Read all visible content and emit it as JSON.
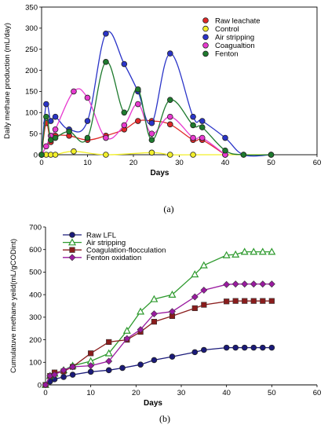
{
  "chart_data": [
    {
      "type": "line",
      "panel_label": "(a)",
      "xlabel": "Days",
      "ylabel": "Daily methane production (mL/day)",
      "xlim": [
        0,
        60
      ],
      "ylim": [
        0,
        350
      ],
      "xticks": [
        0,
        10,
        20,
        30,
        40,
        50,
        60
      ],
      "yticks": [
        0,
        50,
        100,
        150,
        200,
        250,
        300,
        350
      ],
      "grid": false,
      "legend_position": "top-right",
      "series": [
        {
          "name": "Raw leachate",
          "color": "#e02828",
          "x": [
            0,
            1,
            2,
            3,
            6,
            10,
            14,
            18,
            21,
            24,
            28,
            33,
            35,
            40
          ],
          "y": [
            0,
            75,
            30,
            45,
            45,
            35,
            45,
            60,
            80,
            80,
            72,
            35,
            35,
            0
          ]
        },
        {
          "name": "Control",
          "color": "#f2ef2a",
          "x": [
            0,
            1,
            2,
            3,
            7,
            14,
            24,
            28,
            33,
            40,
            50
          ],
          "y": [
            0,
            0,
            0,
            0,
            8,
            0,
            5,
            0,
            0,
            0,
            0
          ]
        },
        {
          "name": "Air stripping",
          "color": "#2a34c8",
          "x": [
            0,
            1,
            2,
            3,
            6,
            10,
            14,
            18,
            21,
            24,
            28,
            33,
            35,
            40,
            44,
            50
          ],
          "y": [
            0,
            120,
            80,
            90,
            60,
            80,
            287,
            215,
            150,
            75,
            240,
            90,
            80,
            40,
            0,
            0
          ]
        },
        {
          "name": "Coagualtion",
          "color": "#e83ad0",
          "x": [
            0,
            1,
            2,
            3,
            7,
            10,
            14,
            18,
            21,
            24,
            28,
            33,
            35,
            40
          ],
          "y": [
            0,
            20,
            45,
            60,
            150,
            135,
            40,
            70,
            120,
            50,
            90,
            40,
            40,
            0
          ]
        },
        {
          "name": "Fenton",
          "color": "#1e7a2e",
          "x": [
            0,
            1,
            2,
            3,
            6,
            10,
            14,
            18,
            21,
            24,
            28,
            33,
            35,
            40,
            44,
            50
          ],
          "y": [
            0,
            90,
            35,
            40,
            55,
            40,
            220,
            100,
            155,
            35,
            130,
            70,
            65,
            10,
            0,
            0
          ]
        }
      ]
    },
    {
      "type": "line",
      "panel_label": "(b)",
      "xlabel": "Days",
      "ylabel": "Cumulatuve methane yeild(mL/gCODint)",
      "xlim": [
        0,
        60
      ],
      "ylim": [
        0,
        700
      ],
      "xticks": [
        0,
        10,
        20,
        30,
        40,
        50,
        60
      ],
      "yticks": [
        0,
        100,
        200,
        300,
        400,
        500,
        600,
        700
      ],
      "grid": false,
      "legend_position": "top-left",
      "series": [
        {
          "name": "Raw LFL",
          "color": "#1a1a7a",
          "marker": "circle",
          "x": [
            0,
            1,
            2,
            4,
            6,
            10,
            14,
            17,
            21,
            24,
            28,
            33,
            35,
            40,
            42,
            44,
            46,
            48,
            50
          ],
          "y": [
            0,
            15,
            25,
            35,
            45,
            58,
            65,
            75,
            90,
            110,
            125,
            145,
            155,
            165,
            165,
            165,
            165,
            165,
            165
          ]
        },
        {
          "name": "Air stripping",
          "color": "#2e9a2e",
          "marker": "triangle",
          "x": [
            0,
            1,
            2,
            4,
            6,
            10,
            14,
            18,
            21,
            24,
            28,
            33,
            35,
            40,
            42,
            44,
            46,
            48,
            50
          ],
          "y": [
            0,
            40,
            50,
            65,
            85,
            105,
            140,
            240,
            325,
            380,
            400,
            490,
            530,
            575,
            578,
            590,
            590,
            590,
            590
          ]
        },
        {
          "name": "Coagulation-flocculation",
          "color": "#8a1c1c",
          "marker": "square",
          "x": [
            0,
            1,
            2,
            4,
            6,
            10,
            14,
            18,
            21,
            24,
            28,
            33,
            35,
            40,
            42,
            44,
            46,
            48,
            50
          ],
          "y": [
            0,
            40,
            55,
            60,
            80,
            140,
            190,
            200,
            235,
            280,
            305,
            340,
            355,
            370,
            372,
            372,
            372,
            372,
            372
          ]
        },
        {
          "name": "Fenton oxidation",
          "color": "#9a1aa0",
          "marker": "diamond",
          "x": [
            0,
            1,
            2,
            4,
            6,
            10,
            14,
            18,
            21,
            24,
            28,
            33,
            35,
            40,
            42,
            44,
            46,
            48,
            50
          ],
          "y": [
            0,
            40,
            45,
            65,
            80,
            85,
            105,
            205,
            245,
            315,
            325,
            390,
            420,
            445,
            447,
            447,
            447,
            447,
            447
          ]
        }
      ]
    }
  ]
}
